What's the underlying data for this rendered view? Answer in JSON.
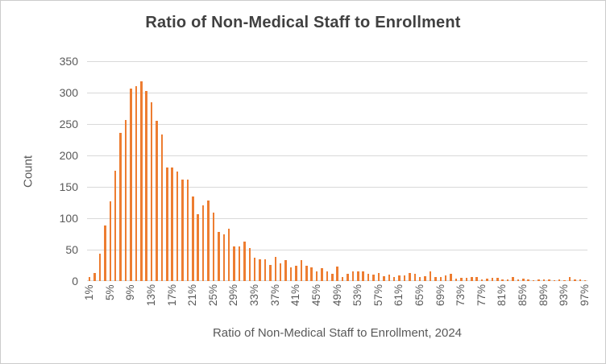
{
  "chart": {
    "title": "Ratio of Non-Medical Staff to Enrollment"
  },
  "chart_data": {
    "type": "bar",
    "title": "Ratio of Non-Medical Staff to Enrollment",
    "xlabel": "Ratio of Non-Medical Staff to Enrollment, 2024",
    "ylabel": "Count",
    "ylim": [
      0,
      350
    ],
    "y_ticks": [
      0,
      50,
      100,
      150,
      200,
      250,
      300,
      350
    ],
    "x_tick_interval": 4,
    "grid": true,
    "legend": false,
    "bar_color": "#ED7D31",
    "gridline_color": "#D9D9D9",
    "text_color": "#595959",
    "title_color": "#404040",
    "categories": [
      "1%",
      "2%",
      "3%",
      "4%",
      "5%",
      "6%",
      "7%",
      "8%",
      "9%",
      "10%",
      "11%",
      "12%",
      "13%",
      "14%",
      "15%",
      "16%",
      "17%",
      "18%",
      "19%",
      "20%",
      "21%",
      "22%",
      "23%",
      "24%",
      "25%",
      "26%",
      "27%",
      "28%",
      "29%",
      "30%",
      "31%",
      "32%",
      "33%",
      "34%",
      "35%",
      "36%",
      "37%",
      "38%",
      "39%",
      "40%",
      "41%",
      "42%",
      "43%",
      "44%",
      "45%",
      "46%",
      "47%",
      "48%",
      "49%",
      "50%",
      "51%",
      "52%",
      "53%",
      "54%",
      "55%",
      "56%",
      "57%",
      "58%",
      "59%",
      "60%",
      "61%",
      "62%",
      "63%",
      "64%",
      "65%",
      "66%",
      "67%",
      "68%",
      "69%",
      "70%",
      "71%",
      "72%",
      "73%",
      "74%",
      "75%",
      "76%",
      "77%",
      "78%",
      "79%",
      "80%",
      "81%",
      "82%",
      "83%",
      "84%",
      "85%",
      "86%",
      "87%",
      "88%",
      "89%",
      "90%",
      "91%",
      "92%",
      "93%",
      "94%",
      "95%",
      "96%",
      "97%"
    ],
    "values": [
      7,
      13,
      43,
      88,
      127,
      176,
      236,
      256,
      306,
      310,
      318,
      303,
      285,
      255,
      233,
      181,
      181,
      174,
      161,
      161,
      135,
      106,
      121,
      128,
      109,
      78,
      74,
      83,
      55,
      55,
      63,
      53,
      37,
      34,
      35,
      26,
      38,
      28,
      33,
      22,
      25,
      33,
      24,
      22,
      15,
      20,
      15,
      12,
      23,
      6,
      11,
      15,
      16,
      15,
      11,
      10,
      13,
      8,
      10,
      6,
      9,
      9,
      13,
      11,
      6,
      8,
      15,
      6,
      7,
      9,
      11,
      4,
      5,
      5,
      6,
      6,
      3,
      4,
      5,
      5,
      2,
      2,
      7,
      3,
      4,
      3,
      1,
      2,
      3,
      3,
      1,
      3,
      1,
      6,
      3,
      3,
      1
    ],
    "x_tick_labels_shown": [
      "1%",
      "5%",
      "9%",
      "13%",
      "17%",
      "21%",
      "25%",
      "29%",
      "33%",
      "37%",
      "41%",
      "45%",
      "49%",
      "53%",
      "57%",
      "61%",
      "65%",
      "69%",
      "73%",
      "77%",
      "81%",
      "85%",
      "89%",
      "93%",
      "97%"
    ]
  }
}
